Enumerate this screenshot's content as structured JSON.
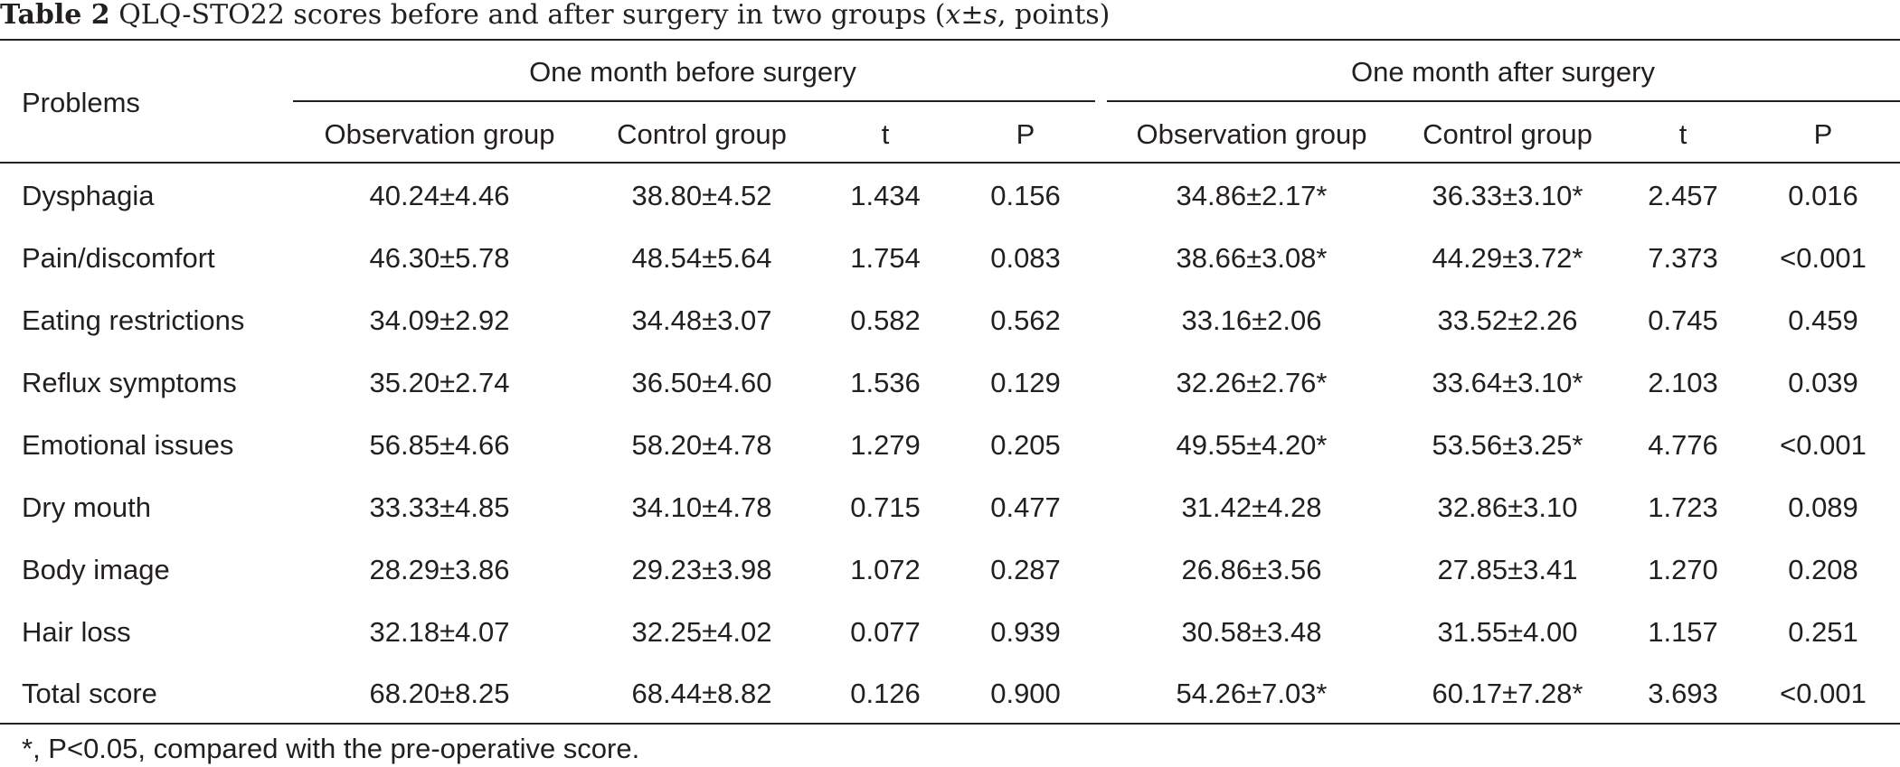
{
  "caption": {
    "label": "Table 2",
    "text_before": " QLQ-STO22 scores before and after surgery in two groups (",
    "xbar": "x",
    "pm": "±",
    "s": "s",
    "text_after": ", points)"
  },
  "table": {
    "row_header": "Problems",
    "group_headers": [
      "One month before surgery",
      "One month after surgery"
    ],
    "sub_headers": [
      "Observation group",
      "Control group",
      "t",
      "P",
      "Observation group",
      "Control group",
      "t",
      "P"
    ],
    "rows": [
      {
        "label": "Dysphagia",
        "cells": [
          "40.24±4.46",
          "38.80±4.52",
          "1.434",
          "0.156",
          "34.86±2.17*",
          "36.33±3.10*",
          "2.457",
          "0.016"
        ]
      },
      {
        "label": "Pain/discomfort",
        "cells": [
          "46.30±5.78",
          "48.54±5.64",
          "1.754",
          "0.083",
          "38.66±3.08*",
          "44.29±3.72*",
          "7.373",
          "<0.001"
        ]
      },
      {
        "label": "Eating restrictions",
        "cells": [
          "34.09±2.92",
          "34.48±3.07",
          "0.582",
          "0.562",
          "33.16±2.06",
          "33.52±2.26",
          "0.745",
          "0.459"
        ]
      },
      {
        "label": "Reflux symptoms",
        "cells": [
          "35.20±2.74",
          "36.50±4.60",
          "1.536",
          "0.129",
          "32.26±2.76*",
          "33.64±3.10*",
          "2.103",
          "0.039"
        ]
      },
      {
        "label": "Emotional issues",
        "cells": [
          "56.85±4.66",
          "58.20±4.78",
          "1.279",
          "0.205",
          "49.55±4.20*",
          "53.56±3.25*",
          "4.776",
          "<0.001"
        ]
      },
      {
        "label": "Dry mouth",
        "cells": [
          "33.33±4.85",
          "34.10±4.78",
          "0.715",
          "0.477",
          "31.42±4.28",
          "32.86±3.10",
          "1.723",
          "0.089"
        ]
      },
      {
        "label": "Body image",
        "cells": [
          "28.29±3.86",
          "29.23±3.98",
          "1.072",
          "0.287",
          "26.86±3.56",
          "27.85±3.41",
          "1.270",
          "0.208"
        ]
      },
      {
        "label": "Hair loss",
        "cells": [
          "32.18±4.07",
          "32.25±4.02",
          "0.077",
          "0.939",
          "30.58±3.48",
          "31.55±4.00",
          "1.157",
          "0.251"
        ]
      },
      {
        "label": "Total score",
        "cells": [
          "68.20±8.25",
          "68.44±8.82",
          "0.126",
          "0.900",
          "54.26±7.03*",
          "60.17±7.28*",
          "3.693",
          "<0.001"
        ]
      }
    ]
  },
  "footnote": "*, P<0.05, compared with the pre-operative score."
}
